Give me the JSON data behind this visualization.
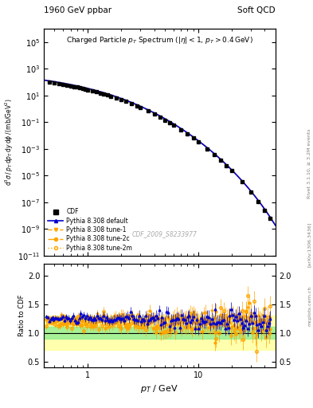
{
  "title_top_left": "1960 GeV ppbar",
  "title_top_right": "Soft QCD",
  "plot_title": "Charged Particle p_{T} Spectrum (|\\eta| < 1, p_{T} > 0.4 GeV)",
  "xlabel": "p_{T} / GeV",
  "ylabel_main": "d^{3}\\sigma / p_{T} dp_{T} dy d\\phi / (mb/GeV^{2})",
  "ylabel_ratio": "Ratio to CDF",
  "right_label": "Rivet 3.1.10, \\geq 3.2M events",
  "arxiv_label": "[arXiv:1306.3436]",
  "ref_label": "mcplots.cern.ch",
  "watermark": "CDF_2009_S8233977",
  "legend_entries": [
    "CDF",
    "Pythia 8.308 default",
    "Pythia 8.308 tune-1",
    "Pythia 8.308 tune-2c",
    "Pythia 8.308 tune-2m"
  ],
  "colors": {
    "CDF": "#000000",
    "default": "#0000ff",
    "tune1": "#ffa500",
    "tune2c": "#ffa500",
    "tune2m": "#ffa500"
  },
  "ratio_band_green": [
    0.9,
    1.1
  ],
  "ratio_band_yellow": [
    0.7,
    1.3
  ],
  "ratio_line": 1.0,
  "xlim_main": [
    0.4,
    50
  ],
  "ylim_main": [
    1e-11,
    1000000.0
  ],
  "xlim_ratio": [
    0.4,
    50
  ],
  "ylim_ratio": [
    0.4,
    2.2
  ],
  "ratio_yticks": [
    0.5,
    1.0,
    1.5,
    2.0
  ]
}
